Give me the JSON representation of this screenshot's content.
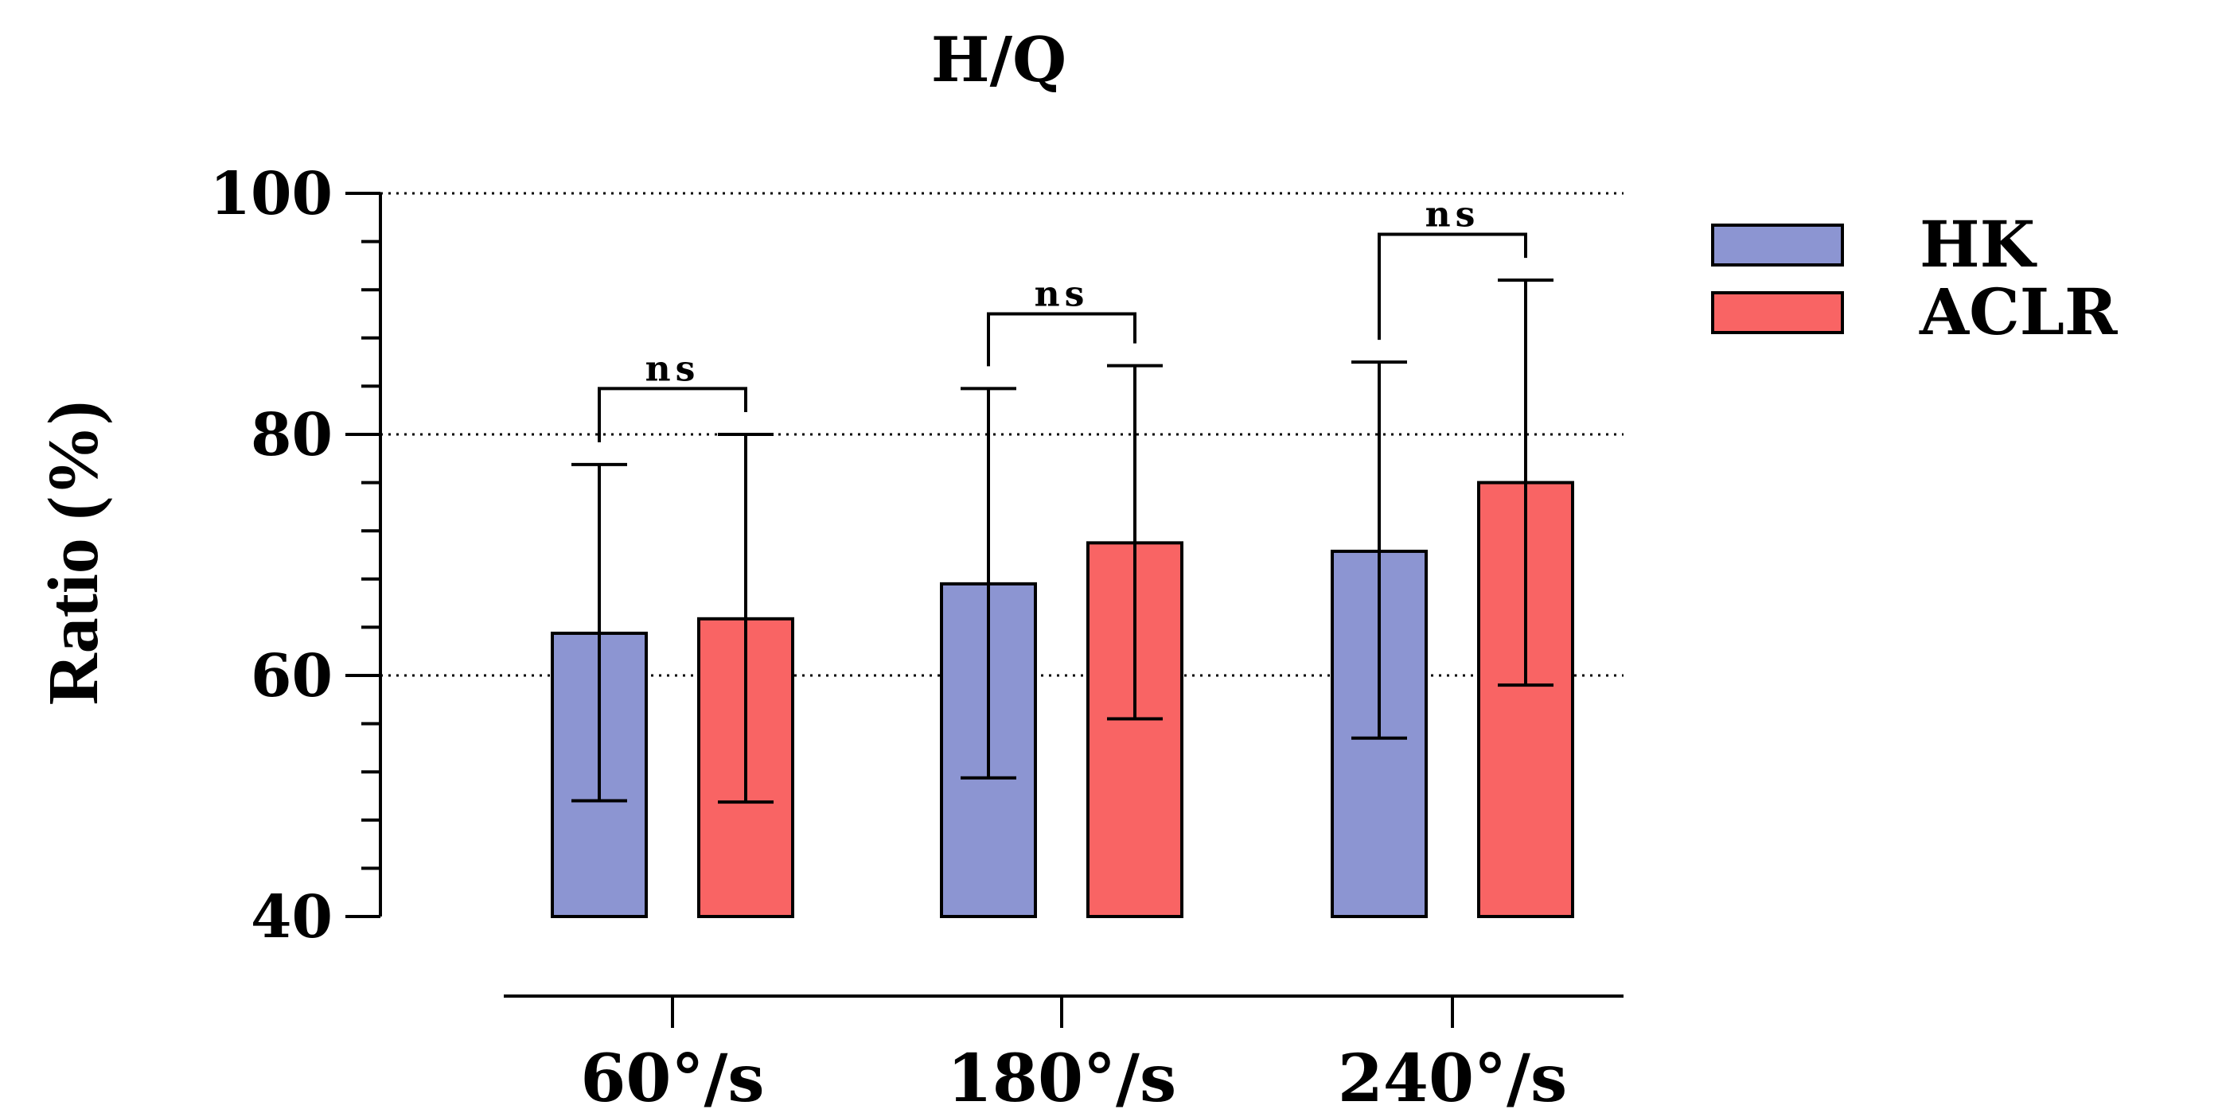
{
  "chart_data": {
    "type": "bar",
    "title": "H/Q",
    "xlabel": "",
    "ylabel": "Ratio (%)",
    "ylim": [
      40,
      100
    ],
    "yticks": [
      "40",
      "60",
      "80",
      "100"
    ],
    "minor_tick_step": 4,
    "gridlines": [
      60,
      80,
      100
    ],
    "categories": [
      "60°/s",
      "180°/s",
      "240°/s"
    ],
    "series": [
      {
        "name": "HK",
        "color": "#8c95d2",
        "values": [
          63.5,
          67.6,
          70.3
        ],
        "err_low": [
          49.6,
          51.5,
          54.8
        ],
        "err_high": [
          77.5,
          83.8,
          86.0
        ]
      },
      {
        "name": "ACLR",
        "color": "#f96464",
        "values": [
          64.7,
          71.0,
          76.0
        ],
        "err_low": [
          49.5,
          56.4,
          59.2
        ],
        "err_high": [
          80.0,
          85.7,
          92.8
        ]
      }
    ],
    "significance": [
      {
        "category": "60°/s",
        "label": "ns",
        "level": 83.8
      },
      {
        "category": "180°/s",
        "label": "ns",
        "level": 90.0
      },
      {
        "category": "240°/s",
        "label": "ns",
        "level": 96.6
      }
    ],
    "legend_position": "top-right"
  }
}
